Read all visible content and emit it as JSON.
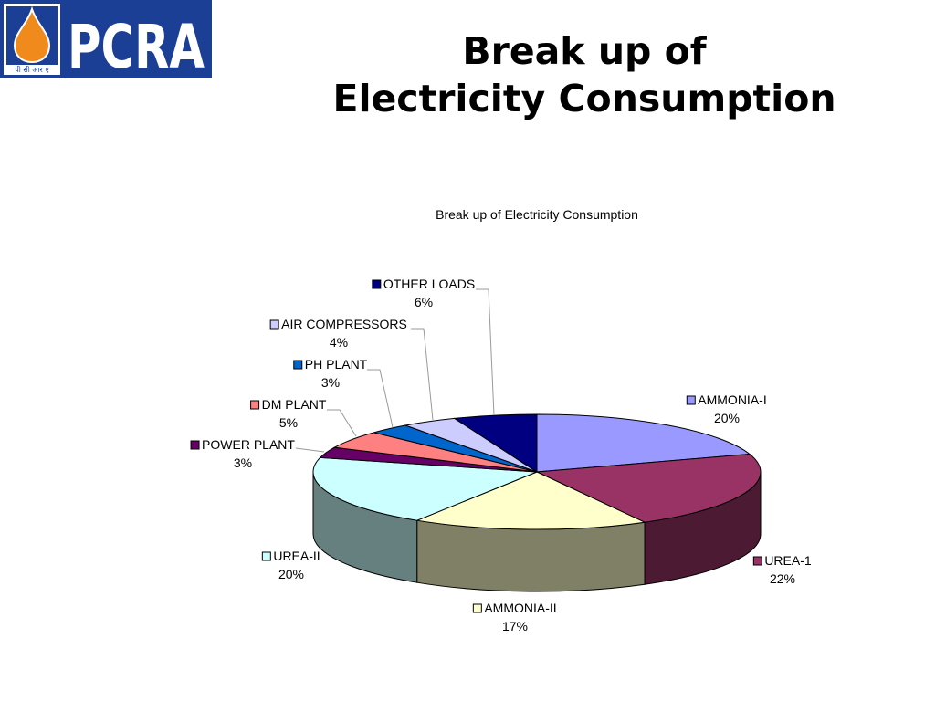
{
  "logo": {
    "text": "PCRA",
    "subtext": "पी सी आर ए",
    "colors": {
      "blue": "#1b3f95",
      "orange": "#f08a1c",
      "white": "#ffffff"
    }
  },
  "slide": {
    "title_line1": "Break up of",
    "title_line2": "Electricity Consumption"
  },
  "chart_data": {
    "type": "pie",
    "style": "3d-exploded-labels",
    "title": "Break up of Electricity Consumption",
    "slices": [
      {
        "label": "AMMONIA-I",
        "value": 20,
        "value_label": "20%",
        "color": "#9999ff"
      },
      {
        "label": "UREA-1",
        "value": 22,
        "value_label": "22%",
        "color": "#993366"
      },
      {
        "label": "AMMONIA-II",
        "value": 17,
        "value_label": "17%",
        "color": "#ffffcc"
      },
      {
        "label": "UREA-II",
        "value": 20,
        "value_label": "20%",
        "color": "#ccffff"
      },
      {
        "label": "POWER PLANT",
        "value": 3,
        "value_label": "3%",
        "color": "#660066"
      },
      {
        "label": "DM PLANT",
        "value": 5,
        "value_label": "5%",
        "color": "#ff8080"
      },
      {
        "label": "PH PLANT",
        "value": 3,
        "value_label": "3%",
        "color": "#0066cc"
      },
      {
        "label": "AIR COMPRESSORS",
        "value": 4,
        "value_label": "4%",
        "color": "#ccccff"
      },
      {
        "label": "OTHER LOADS",
        "value": 6,
        "value_label": "6%",
        "color": "#000080"
      }
    ]
  }
}
